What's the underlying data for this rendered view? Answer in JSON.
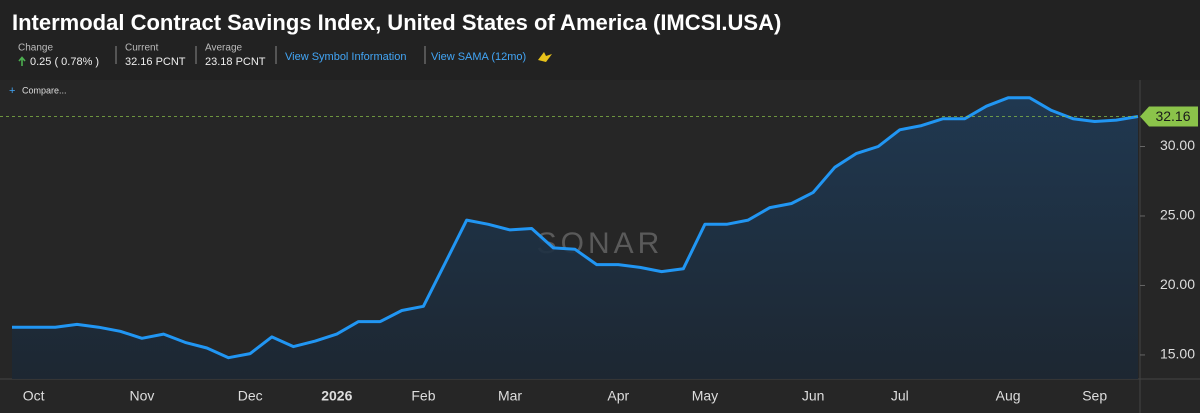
{
  "header": {
    "change_label": "Change",
    "change": "0.25 ( 0.78% )",
    "current_label": "Current",
    "current": "32.16 PCNT",
    "average_label": "Average",
    "average": "23.18 PCNT",
    "link_symbol": "View Symbol Information",
    "link_sama": "View SAMA (12mo)",
    "compare": "Compare...",
    "watermark": "SONAR"
  },
  "chart_data": {
    "type": "line",
    "title": "Intermodal Contract Savings Index, United States of America (IMCSI.USA)",
    "categories": [
      null,
      "Oct",
      null,
      null,
      null,
      null,
      "Nov",
      null,
      null,
      null,
      null,
      "Dec",
      null,
      null,
      null,
      "2026",
      null,
      null,
      null,
      "Feb",
      null,
      null,
      null,
      "Mar",
      null,
      null,
      null,
      null,
      "Apr",
      null,
      null,
      null,
      "May",
      null,
      null,
      null,
      null,
      "Jun",
      null,
      null,
      null,
      "Jul",
      null,
      null,
      null,
      null,
      "Aug",
      null,
      null,
      null,
      "Sep",
      null,
      null
    ],
    "values": [
      17.0,
      17.0,
      17.0,
      17.2,
      17.0,
      16.7,
      16.2,
      16.5,
      15.9,
      15.5,
      14.8,
      15.1,
      16.3,
      15.6,
      16.0,
      16.5,
      17.4,
      17.4,
      18.2,
      18.5,
      21.6,
      24.7,
      24.4,
      24.0,
      24.1,
      22.7,
      22.6,
      21.5,
      21.5,
      21.3,
      21.0,
      21.2,
      24.4,
      24.4,
      24.7,
      25.6,
      25.9,
      26.7,
      28.5,
      29.5,
      30.0,
      31.2,
      31.5,
      32.0,
      32.0,
      32.9,
      33.5,
      33.5,
      32.6,
      32.0,
      31.8,
      31.9,
      32.16
    ],
    "color": "#2196f3",
    "last_value_color": "#8bc34a",
    "ylim": [
      13.27,
      34.64
    ],
    "yticks": [
      {
        "value": 15,
        "label": "15.00"
      },
      {
        "value": 20,
        "label": "20.00"
      },
      {
        "value": 25,
        "label": "25.00"
      },
      {
        "value": 30,
        "label": "30.00"
      }
    ],
    "grid": false
  }
}
